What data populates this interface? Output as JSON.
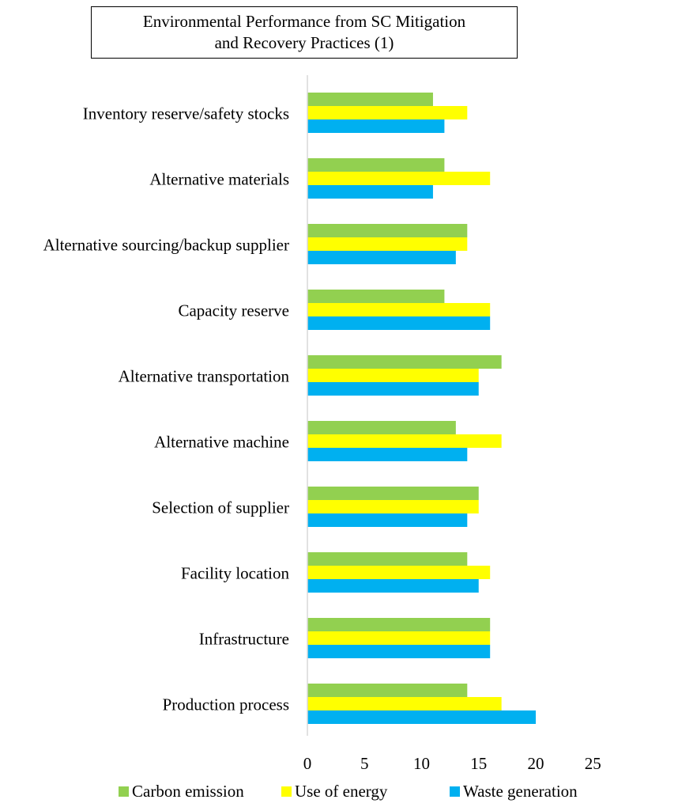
{
  "chart_data": {
    "type": "bar",
    "orientation": "horizontal",
    "title_lines": [
      "Environmental Performance from SC Mitigation",
      "and Recovery Practices (1)"
    ],
    "categories": [
      "Inventory reserve/safety stocks",
      "Alternative materials",
      "Alternative sourcing/backup supplier",
      "Capacity reserve",
      "Alternative transportation",
      "Alternative machine",
      "Selection of supplier",
      "Facility location",
      "Infrastructure",
      "Production process"
    ],
    "series": [
      {
        "name": "Carbon emission",
        "color": "#92D050",
        "values": [
          11,
          12,
          14,
          12,
          17,
          13,
          15,
          14,
          16,
          14
        ]
      },
      {
        "name": "Use of energy",
        "color": "#FFFF00",
        "values": [
          14,
          16,
          14,
          16,
          15,
          17,
          15,
          16,
          16,
          17
        ]
      },
      {
        "name": "Waste generation",
        "color": "#00B0F0",
        "values": [
          12,
          11,
          13,
          16,
          15,
          14,
          14,
          15,
          16,
          20
        ]
      }
    ],
    "xlim": [
      0,
      25
    ],
    "xticks": [
      0,
      5,
      10,
      15,
      20,
      25
    ],
    "grid": false,
    "legend_position": "bottom",
    "axis_color": "#D9D9D9"
  }
}
